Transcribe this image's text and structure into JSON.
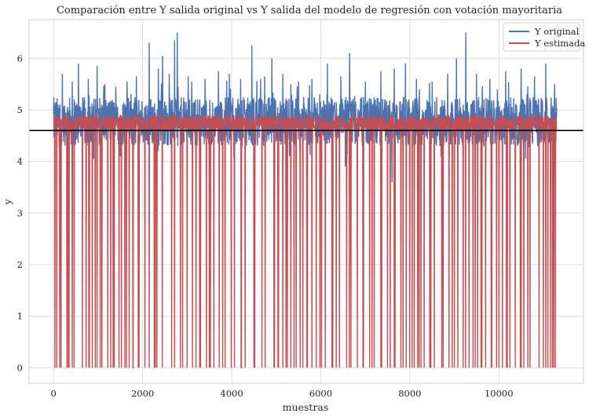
{
  "chart_data": {
    "type": "line",
    "title": "Comparación entre Y salida original vs Y salida del modelo de regresión con votación mayoritaria",
    "xlabel": "muestras",
    "ylabel": "y",
    "xlim": [
      -550,
      11900
    ],
    "ylim": [
      -0.3,
      6.75
    ],
    "xticks": [
      0,
      2000,
      4000,
      6000,
      8000,
      10000
    ],
    "yticks": [
      0,
      1,
      2,
      3,
      4,
      5,
      6
    ],
    "grid": true,
    "legend_position": "top-right",
    "n_samples": 11300,
    "series": [
      {
        "name": "Y original",
        "color": "#4c72b0",
        "typical_range": [
          4.3,
          5.25
        ],
        "baseline": 4.75,
        "spikes": [
          [
            50,
            5.15
          ],
          [
            200,
            5.7
          ],
          [
            420,
            5.55
          ],
          [
            560,
            5.9
          ],
          [
            780,
            5.6
          ],
          [
            980,
            5.85
          ],
          [
            1150,
            5.5
          ],
          [
            1400,
            5.45
          ],
          [
            1650,
            5.55
          ],
          [
            1860,
            5.65
          ],
          [
            2150,
            6.3
          ],
          [
            2350,
            5.8
          ],
          [
            2450,
            6.05
          ],
          [
            2600,
            5.7
          ],
          [
            2720,
            6.35
          ],
          [
            2780,
            6.5
          ],
          [
            3100,
            5.55
          ],
          [
            3400,
            5.6
          ],
          [
            3700,
            5.75
          ],
          [
            3950,
            5.7
          ],
          [
            4200,
            5.6
          ],
          [
            4450,
            6.25
          ],
          [
            4650,
            5.6
          ],
          [
            4900,
            6.0
          ],
          [
            5150,
            5.7
          ],
          [
            5500,
            5.55
          ],
          [
            5800,
            5.6
          ],
          [
            6150,
            5.9
          ],
          [
            6450,
            5.65
          ],
          [
            6650,
            6.1
          ],
          [
            7000,
            5.55
          ],
          [
            7350,
            5.75
          ],
          [
            7650,
            5.8
          ],
          [
            7900,
            5.9
          ],
          [
            8150,
            5.6
          ],
          [
            8500,
            5.55
          ],
          [
            8850,
            5.7
          ],
          [
            9050,
            6.0
          ],
          [
            9260,
            6.5
          ],
          [
            9500,
            5.7
          ],
          [
            9800,
            5.6
          ],
          [
            10150,
            5.75
          ],
          [
            10500,
            5.8
          ],
          [
            10800,
            5.65
          ],
          [
            11050,
            5.9
          ],
          [
            11250,
            5.5
          ]
        ],
        "dips": [
          [
            150,
            4.1
          ],
          [
            900,
            4.05
          ],
          [
            1500,
            4.1
          ],
          [
            2300,
            4.0
          ],
          [
            3200,
            4.15
          ],
          [
            4050,
            4.05
          ],
          [
            5300,
            4.1
          ],
          [
            6550,
            3.9
          ],
          [
            7600,
            3.6
          ],
          [
            8700,
            4.1
          ],
          [
            9700,
            3.8
          ],
          [
            10600,
            4.05
          ],
          [
            11200,
            4.1
          ]
        ]
      },
      {
        "name": "Y estimada",
        "color": "#c44e52",
        "typical_range": [
          4.6,
          4.9
        ],
        "baseline": 4.75,
        "zero_drops": [
          30,
          70,
          140,
          165,
          300,
          330,
          345,
          420,
          460,
          650,
          730,
          790,
          805,
          870,
          935,
          975,
          1050,
          1085,
          1220,
          1285,
          1340,
          1360,
          1470,
          1525,
          1600,
          1640,
          1700,
          1780,
          1790,
          1900,
          1920,
          2050,
          2150,
          2260,
          2285,
          2320,
          2440,
          2650,
          2720,
          2850,
          2900,
          3000,
          3120,
          3200,
          3280,
          3300,
          3430,
          3500,
          3520,
          3600,
          3720,
          3800,
          3850,
          3990,
          4060,
          4210,
          4220,
          4300,
          4500,
          4520,
          4680,
          4750,
          4950,
          4960,
          5040,
          5050,
          5150,
          5220,
          5250,
          5330,
          5400,
          5450,
          5540,
          5600,
          5690,
          5700,
          5800,
          5900,
          5980,
          6020,
          6100,
          6250,
          6270,
          6350,
          6420,
          6580,
          6640,
          6680,
          6820,
          6950,
          6960,
          7100,
          7150,
          7200,
          7350,
          7370,
          7500,
          7560,
          7650,
          7670,
          7800,
          7850,
          7920,
          8000,
          8050,
          8100,
          8180,
          8210,
          8250,
          8320,
          8450,
          8470,
          8550,
          8720,
          8750,
          8880,
          8950,
          9000,
          9080,
          9200,
          9250,
          9330,
          9420,
          9470,
          9520,
          9600,
          9620,
          9700,
          9830,
          9840,
          9950,
          10000,
          10080,
          10170,
          10190,
          10250,
          10370,
          10480,
          10500,
          10560,
          10650,
          10700,
          10900,
          11000,
          11050,
          11100,
          11160,
          11200,
          11230,
          11270
        ]
      }
    ],
    "hline": {
      "y": 4.6,
      "color": "#000000"
    }
  }
}
